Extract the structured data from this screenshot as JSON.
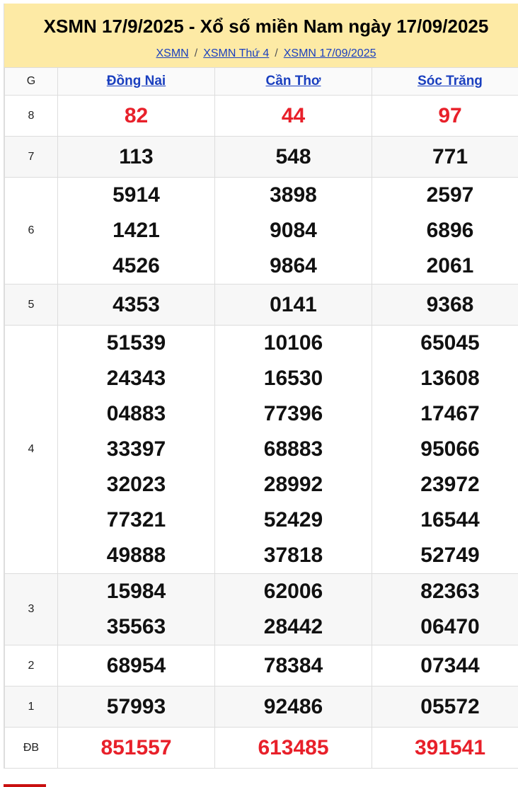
{
  "header": {
    "title": "XSMN 17/9/2025 - Xổ số miền Nam ngày 17/09/2025",
    "breadcrumb": [
      "XSMN",
      "XSMN Thứ 4",
      "XSMN 17/09/2025"
    ],
    "separator": "/"
  },
  "table": {
    "columns": [
      "G",
      "Đồng Nai",
      "Cần Thơ",
      "Sóc Trăng"
    ],
    "rows": [
      {
        "prize": "8",
        "red": true,
        "values": [
          [
            "82"
          ],
          [
            "44"
          ],
          [
            "97"
          ]
        ]
      },
      {
        "prize": "7",
        "values": [
          [
            "113"
          ],
          [
            "548"
          ],
          [
            "771"
          ]
        ]
      },
      {
        "prize": "6",
        "values": [
          [
            "5914",
            "1421",
            "4526"
          ],
          [
            "3898",
            "9084",
            "9864"
          ],
          [
            "2597",
            "6896",
            "2061"
          ]
        ]
      },
      {
        "prize": "5",
        "values": [
          [
            "4353"
          ],
          [
            "0141"
          ],
          [
            "9368"
          ]
        ]
      },
      {
        "prize": "4",
        "values": [
          [
            "51539",
            "24343",
            "04883",
            "33397",
            "32023",
            "77321",
            "49888"
          ],
          [
            "10106",
            "16530",
            "77396",
            "68883",
            "28992",
            "52429",
            "37818"
          ],
          [
            "65045",
            "13608",
            "17467",
            "95066",
            "23972",
            "16544",
            "52749"
          ]
        ]
      },
      {
        "prize": "3",
        "values": [
          [
            "15984",
            "35563"
          ],
          [
            "62006",
            "28442"
          ],
          [
            "82363",
            "06470"
          ]
        ]
      },
      {
        "prize": "2",
        "values": [
          [
            "68954"
          ],
          [
            "78384"
          ],
          [
            "07344"
          ]
        ]
      },
      {
        "prize": "1",
        "values": [
          [
            "57993"
          ],
          [
            "92486"
          ],
          [
            "05572"
          ]
        ]
      },
      {
        "prize": "ĐB",
        "red": true,
        "values": [
          [
            "851557"
          ],
          [
            "613485"
          ],
          [
            "391541"
          ]
        ]
      }
    ]
  },
  "colors": {
    "header_bg": "#fdeaa5",
    "link": "#1a3fbf",
    "highlight": "#e8202a"
  }
}
